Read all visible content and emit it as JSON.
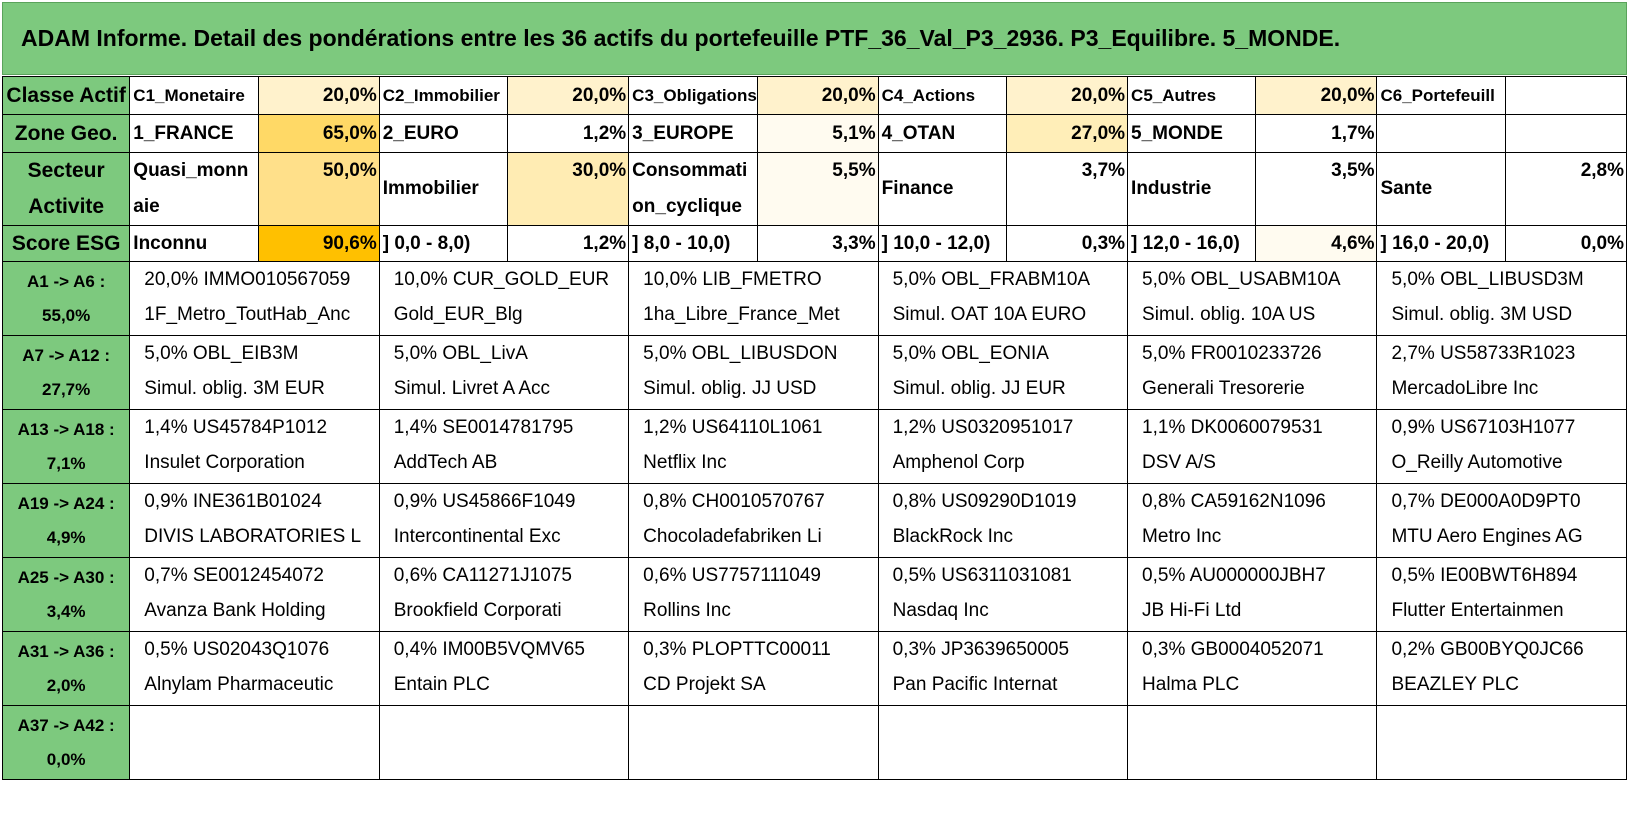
{
  "title": "ADAM Informe. Detail des pondérations entre les 36 actifs du portefeuille PTF_36_Val_P3_2936. P3_Equilibre. 5_MONDE.",
  "colors": {
    "header_green": "#7dc97e",
    "heat_light": "#fff2cc",
    "heat_mid": "#ffe699",
    "heat_strong": "#ffd966",
    "heat_max": "#ffc000"
  },
  "summary": [
    {
      "head": "Classe Actif",
      "cells": [
        {
          "label": "C1_Monetaire",
          "pct": "20,0%",
          "heat": "#fff2cc"
        },
        {
          "label": "C2_Immobilier",
          "pct": "20,0%",
          "heat": "#fff2cc"
        },
        {
          "label": "C3_Obligations",
          "pct": "20,0%",
          "heat": "#fff2cc"
        },
        {
          "label": "C4_Actions",
          "pct": "20,0%",
          "heat": "#fff2cc"
        },
        {
          "label": "C5_Autres",
          "pct": "20,0%",
          "heat": "#fff2cc"
        },
        {
          "label": "C6_Portefeuill",
          "pct": "",
          "heat": "#ffffff"
        }
      ]
    },
    {
      "head": "Zone Geo.",
      "cells": [
        {
          "label": "1_FRANCE",
          "pct": "65,0%",
          "heat": "#ffd966"
        },
        {
          "label": "2_EURO",
          "pct": "1,2%",
          "heat": "#ffffff"
        },
        {
          "label": "3_EUROPE",
          "pct": "5,1%",
          "heat": "#fffbf0"
        },
        {
          "label": "4_OTAN",
          "pct": "27,0%",
          "heat": "#ffeeb8"
        },
        {
          "label": "5_MONDE",
          "pct": "1,7%",
          "heat": "#ffffff"
        },
        {
          "label": "",
          "pct": "",
          "heat": "#ffffff"
        }
      ]
    },
    {
      "head": "Secteur Activite",
      "cells": [
        {
          "label": "Quasi_monnaie",
          "pct": "50,0%",
          "heat": "#ffe08a"
        },
        {
          "label": "Immobilier",
          "pct": "30,0%",
          "heat": "#ffecb3"
        },
        {
          "label": "Consommation_cyclique",
          "pct": "5,5%",
          "heat": "#fffbf0"
        },
        {
          "label": "Finance",
          "pct": "3,7%",
          "heat": "#ffffff"
        },
        {
          "label": "Industrie",
          "pct": "3,5%",
          "heat": "#ffffff"
        },
        {
          "label": "Sante",
          "pct": "2,8%",
          "heat": "#ffffff"
        }
      ]
    },
    {
      "head": "Score ESG",
      "cells": [
        {
          "label": "Inconnu",
          "pct": "90,6%",
          "heat": "#ffc000"
        },
        {
          "label": "] 0,0 - 8,0)",
          "pct": "1,2%",
          "heat": "#ffffff"
        },
        {
          "label": "] 8,0 - 10,0)",
          "pct": "3,3%",
          "heat": "#ffffff"
        },
        {
          "label": "] 10,0 - 12,0)",
          "pct": "0,3%",
          "heat": "#ffffff"
        },
        {
          "label": "] 12,0 - 16,0)",
          "pct": "4,6%",
          "heat": "#fffbf0"
        },
        {
          "label": "] 16,0 - 20,0)",
          "pct": "0,0%",
          "heat": "#ffffff"
        }
      ]
    }
  ],
  "assets": [
    {
      "range": "A1 -> A6 :",
      "total": "55,0%",
      "items": [
        {
          "line1": "20,0% IMMO010567059",
          "line2": "1F_Metro_ToutHab_Anc"
        },
        {
          "line1": "10,0% CUR_GOLD_EUR",
          "line2": "Gold_EUR_Blg"
        },
        {
          "line1": "10,0% LIB_FMETRO",
          "line2": "1ha_Libre_France_Met"
        },
        {
          "line1": "5,0% OBL_FRABM10A",
          "line2": "Simul. OAT 10A EURO"
        },
        {
          "line1": "5,0% OBL_USABM10A",
          "line2": "Simul. oblig. 10A US"
        },
        {
          "line1": "5,0% OBL_LIBUSD3M",
          "line2": "Simul. oblig. 3M USD"
        }
      ]
    },
    {
      "range": "A7 -> A12 :",
      "total": "27,7%",
      "items": [
        {
          "line1": "5,0% OBL_EIB3M",
          "line2": "Simul. oblig. 3M EUR"
        },
        {
          "line1": "5,0% OBL_LivA",
          "line2": "Simul. Livret A Acc"
        },
        {
          "line1": "5,0% OBL_LIBUSDON",
          "line2": "Simul. oblig. JJ USD"
        },
        {
          "line1": "5,0% OBL_EONIA",
          "line2": "Simul. oblig. JJ EUR"
        },
        {
          "line1": "5,0% FR0010233726",
          "line2": "Generali Tresorerie"
        },
        {
          "line1": "2,7% US58733R1023",
          "line2": "MercadoLibre Inc"
        }
      ]
    },
    {
      "range": "A13 -> A18 :",
      "total": "7,1%",
      "items": [
        {
          "line1": "1,4% US45784P1012",
          "line2": "Insulet Corporation"
        },
        {
          "line1": "1,4% SE0014781795",
          "line2": "AddTech AB"
        },
        {
          "line1": "1,2% US64110L1061",
          "line2": "Netflix Inc"
        },
        {
          "line1": "1,2% US0320951017",
          "line2": "Amphenol Corp"
        },
        {
          "line1": "1,1% DK0060079531",
          "line2": "DSV A/S"
        },
        {
          "line1": "0,9% US67103H1077",
          "line2": "O_Reilly Automotive"
        }
      ]
    },
    {
      "range": "A19 -> A24 :",
      "total": "4,9%",
      "items": [
        {
          "line1": "0,9% INE361B01024",
          "line2": "DIVIS LABORATORIES L"
        },
        {
          "line1": "0,9% US45866F1049",
          "line2": "Intercontinental Exc"
        },
        {
          "line1": "0,8% CH0010570767",
          "line2": "Chocoladefabriken Li"
        },
        {
          "line1": "0,8% US09290D1019",
          "line2": "BlackRock Inc"
        },
        {
          "line1": "0,8% CA59162N1096",
          "line2": "Metro Inc"
        },
        {
          "line1": "0,7% DE000A0D9PT0",
          "line2": "MTU Aero Engines AG"
        }
      ]
    },
    {
      "range": "A25 -> A30 :",
      "total": "3,4%",
      "items": [
        {
          "line1": "0,7% SE0012454072",
          "line2": "Avanza Bank Holding"
        },
        {
          "line1": "0,6% CA11271J1075",
          "line2": "Brookfield Corporati"
        },
        {
          "line1": "0,6% US7757111049",
          "line2": "Rollins Inc"
        },
        {
          "line1": "0,5% US6311031081",
          "line2": "Nasdaq Inc"
        },
        {
          "line1": "0,5% AU000000JBH7",
          "line2": "JB Hi-Fi Ltd"
        },
        {
          "line1": "0,5% IE00BWT6H894",
          "line2": "Flutter Entertainmen"
        }
      ]
    },
    {
      "range": "A31 -> A36 :",
      "total": "2,0%",
      "items": [
        {
          "line1": "0,5% US02043Q1076",
          "line2": "Alnylam Pharmaceutic"
        },
        {
          "line1": "0,4% IM00B5VQMV65",
          "line2": "Entain PLC"
        },
        {
          "line1": "0,3% PLOPTTC00011",
          "line2": "CD Projekt SA"
        },
        {
          "line1": "0,3% JP3639650005",
          "line2": "Pan Pacific Internat"
        },
        {
          "line1": "0,3% GB0004052071",
          "line2": "Halma PLC"
        },
        {
          "line1": "0,2% GB00BYQ0JC66",
          "line2": "BEAZLEY PLC"
        }
      ]
    },
    {
      "range": "A37 -> A42 :",
      "total": "0,0%",
      "items": [
        {
          "line1": "",
          "line2": ""
        },
        {
          "line1": "",
          "line2": ""
        },
        {
          "line1": "",
          "line2": ""
        },
        {
          "line1": "",
          "line2": ""
        },
        {
          "line1": "",
          "line2": ""
        },
        {
          "line1": "",
          "line2": ""
        }
      ]
    }
  ]
}
